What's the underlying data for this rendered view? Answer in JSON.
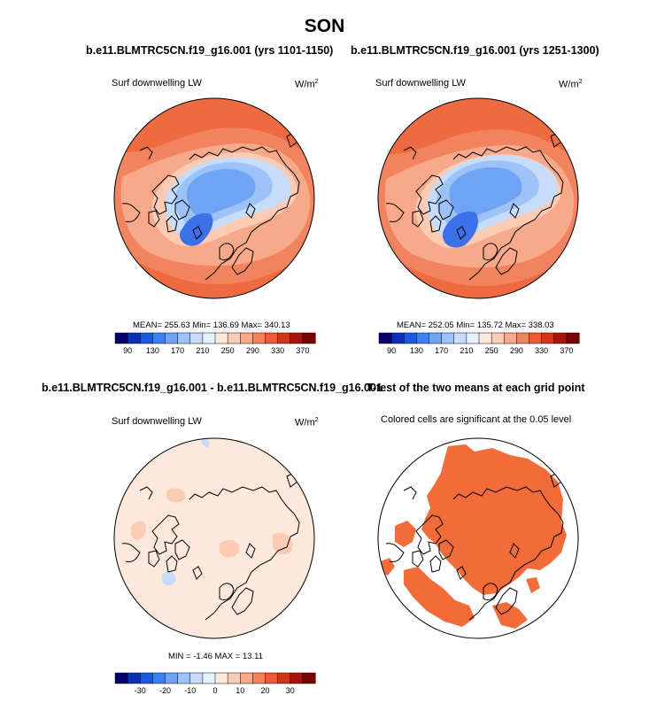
{
  "title": "SON",
  "panels": [
    {
      "title": "b.e11.BLMTRC5CN.f19_g16.001 (yrs 1101-1150)",
      "variable": "Surf downwelling LW",
      "units": "W/m",
      "units_sup": "2",
      "stats": "MEAN= 255.63  Min= 136.69  Max= 340.13"
    },
    {
      "title": "b.e11.BLMTRC5CN.f19_g16.001 (yrs 1251-1300)",
      "variable": "Surf downwelling LW",
      "units": "W/m",
      "units_sup": "2",
      "stats": "MEAN= 252.05  Min= 135.72  Max= 338.03"
    },
    {
      "title": "b.e11.BLMTRC5CN.f19_g16.001 - b.e11.BLMTRC5CN.f19_g16.001",
      "variable": "Surf downwelling LW",
      "units": "W/m",
      "units_sup": "2",
      "stats": "MIN =  -1.46 MAX =  13.11"
    },
    {
      "title": "T-test of the two means at each grid point",
      "variable": "Colored cells are significant at the 0.05 level"
    }
  ],
  "chart_data": [
    {
      "type": "heatmap",
      "projection": "north-polar-stereographic",
      "title": "b.e11.BLMTRC5CN.f19_g16.001 (yrs 1101-1150)",
      "field": "Surf downwelling LW",
      "units": "W/m2",
      "mean": 255.63,
      "min": 136.69,
      "max": 340.13,
      "colorbar": {
        "levels": [
          90,
          110,
          130,
          150,
          170,
          190,
          210,
          230,
          250,
          270,
          290,
          310,
          330,
          350,
          370
        ],
        "tick_labels": [
          "90",
          "130",
          "170",
          "210",
          "250",
          "290",
          "330",
          "370"
        ],
        "colors": [
          "#08006b",
          "#0d2fb5",
          "#1d58e0",
          "#3d80f0",
          "#6fa3f4",
          "#9cc2f7",
          "#c6dcfa",
          "#e6f0fc",
          "#fde9dc",
          "#fbcbb4",
          "#f7a98a",
          "#f2835f",
          "#ea5b36",
          "#d2361a",
          "#a8160b",
          "#760502"
        ]
      }
    },
    {
      "type": "heatmap",
      "projection": "north-polar-stereographic",
      "title": "b.e11.BLMTRC5CN.f19_g16.001 (yrs 1251-1300)",
      "field": "Surf downwelling LW",
      "units": "W/m2",
      "mean": 252.05,
      "min": 135.72,
      "max": 338.03,
      "colorbar": {
        "levels": [
          90,
          110,
          130,
          150,
          170,
          190,
          210,
          230,
          250,
          270,
          290,
          310,
          330,
          350,
          370
        ],
        "tick_labels": [
          "90",
          "130",
          "170",
          "210",
          "250",
          "290",
          "330",
          "370"
        ],
        "colors": [
          "#08006b",
          "#0d2fb5",
          "#1d58e0",
          "#3d80f0",
          "#6fa3f4",
          "#9cc2f7",
          "#c6dcfa",
          "#e6f0fc",
          "#fde9dc",
          "#fbcbb4",
          "#f7a98a",
          "#f2835f",
          "#ea5b36",
          "#d2361a",
          "#a8160b",
          "#760502"
        ]
      }
    },
    {
      "type": "heatmap",
      "projection": "north-polar-stereographic",
      "title": "b.e11.BLMTRC5CN.f19_g16.001 - b.e11.BLMTRC5CN.f19_g16.001",
      "field": "Surf downwelling LW",
      "units": "W/m2",
      "min": -1.46,
      "max": 13.11,
      "colorbar": {
        "levels": [
          -35,
          -30,
          -25,
          -20,
          -15,
          -10,
          -5,
          0,
          5,
          10,
          15,
          20,
          25,
          30,
          35
        ],
        "tick_labels": [
          "-30",
          "-20",
          "-10",
          "0",
          "10",
          "20",
          "30"
        ],
        "colors": [
          "#08006b",
          "#0d2fb5",
          "#1d58e0",
          "#3d80f0",
          "#6fa3f4",
          "#9cc2f7",
          "#c6dcfa",
          "#e6f0fc",
          "#fde9dc",
          "#fbcbb4",
          "#f7a98a",
          "#f2835f",
          "#ea5b36",
          "#d2361a",
          "#a8160b",
          "#760502"
        ]
      }
    },
    {
      "type": "heatmap",
      "projection": "north-polar-stereographic",
      "title": "T-test of the two means at each grid point",
      "note": "Colored cells are significant at the 0.05 level",
      "significant_color": "#f26b38"
    }
  ],
  "colors": {
    "land_line": "#000000",
    "low_fill": "#8fb4f3",
    "deep_low_fill": "#3d6fe8",
    "mid_fill": "#c9ddfa",
    "warm_fill": "#f7a98a",
    "hot_fill": "#ee6a40",
    "diff_fill": "#fde6d6",
    "diff_warm": "#fbcbb4",
    "diff_cool": "#c6dcfa",
    "ttest_fill": "#f26b38"
  }
}
